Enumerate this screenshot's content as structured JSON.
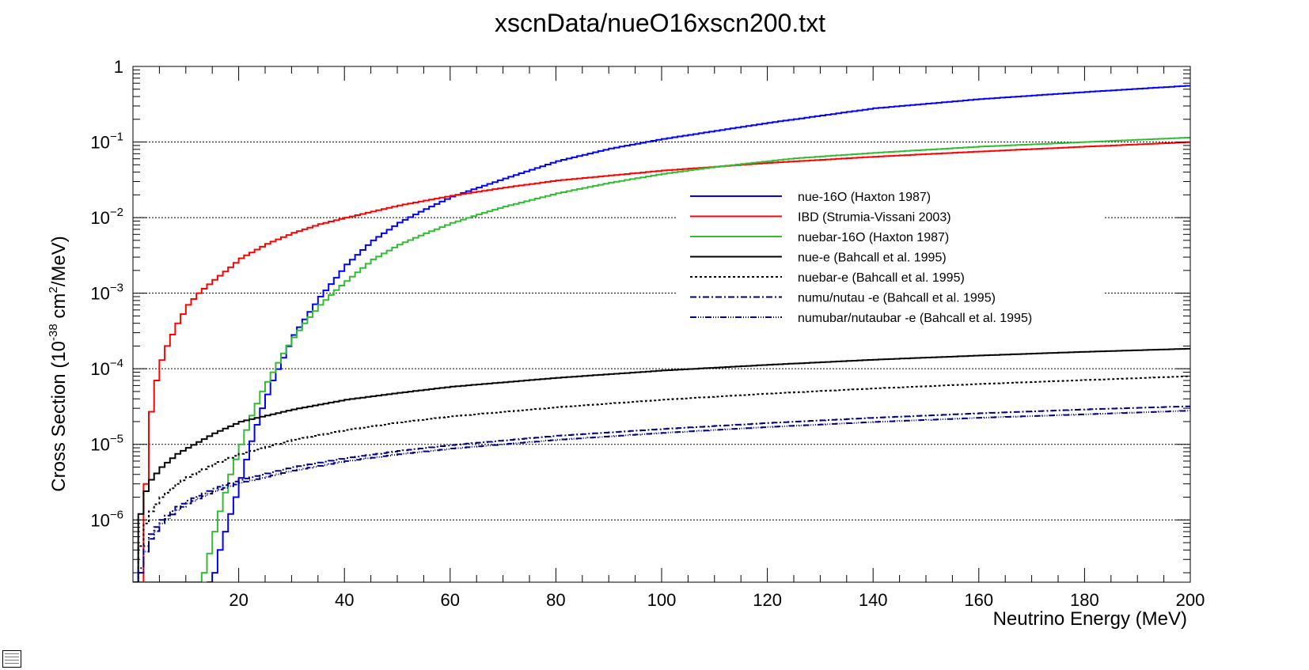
{
  "chart_data": {
    "type": "line",
    "title": "xscnData/nueO16xscn200.txt",
    "xlabel": "Neutrino Energy (MeV)",
    "ylabel_main": "Cross Section (10",
    "ylabel_exp": "-38",
    "ylabel_rest": " cm",
    "ylabel_sq": "2",
    "ylabel_unit": "/MeV)",
    "xlim": [
      0,
      200
    ],
    "ylim": [
      1.5e-07,
      1.0
    ],
    "yscale": "log",
    "grid": true,
    "legend_position": "center-right",
    "x_ticks": [
      20,
      40,
      60,
      80,
      100,
      120,
      140,
      160,
      180,
      200
    ],
    "x_tick_labels": [
      "20",
      "40",
      "60",
      "80",
      "100",
      "120",
      "140",
      "160",
      "180",
      "200"
    ],
    "y_ticks": [
      {
        "value": 1,
        "base": "1",
        "exp": ""
      },
      {
        "value": 0.1,
        "base": "10",
        "exp": "−1"
      },
      {
        "value": 0.01,
        "base": "10",
        "exp": "−2"
      },
      {
        "value": 0.001,
        "base": "10",
        "exp": "−3"
      },
      {
        "value": 0.0001,
        "base": "10",
        "exp": "−4"
      },
      {
        "value": 1e-05,
        "base": "10",
        "exp": "−5"
      },
      {
        "value": 1e-06,
        "base": "10",
        "exp": "−6"
      }
    ],
    "series": [
      {
        "name": "nue-16O (Haxton 1987)",
        "color": "#0000ff",
        "dash": "",
        "x": [
          14,
          15,
          16,
          17,
          18,
          19,
          20,
          22,
          24,
          26,
          28,
          30,
          32,
          35,
          38,
          40,
          45,
          50,
          55,
          60,
          65,
          70,
          75,
          80,
          90,
          100,
          120,
          140,
          160,
          180,
          200
        ],
        "y": [
          1.5e-07,
          2e-07,
          4e-07,
          7e-07,
          1.2e-06,
          2e-06,
          3.6e-06,
          1.1e-05,
          3e-05,
          7e-05,
          0.00014,
          0.00028,
          0.00045,
          0.0009,
          0.0016,
          0.0024,
          0.005,
          0.0086,
          0.013,
          0.019,
          0.025,
          0.033,
          0.043,
          0.056,
          0.082,
          0.11,
          0.18,
          0.28,
          0.37,
          0.46,
          0.56
        ]
      },
      {
        "name": "IBD (Strumia-Vissani 2003)",
        "color": "#ff0000",
        "dash": "",
        "x": [
          1.8,
          2,
          3,
          4,
          5,
          6,
          8,
          10,
          12,
          15,
          18,
          20,
          25,
          30,
          35,
          40,
          50,
          60,
          70,
          80,
          100,
          120,
          140,
          160,
          180,
          200
        ],
        "y": [
          1.5e-07,
          3e-06,
          2.7e-05,
          7e-05,
          0.00013,
          0.0002,
          0.0004,
          0.0007,
          0.001,
          0.0015,
          0.0022,
          0.0029,
          0.0045,
          0.0063,
          0.0082,
          0.01,
          0.0145,
          0.0195,
          0.025,
          0.031,
          0.042,
          0.053,
          0.064,
          0.075,
          0.087,
          0.1
        ]
      },
      {
        "name": "nuebar-16O (Haxton 1987)",
        "color": "#33bb33",
        "dash": "",
        "x": [
          0,
          12,
          13,
          14,
          15,
          16,
          17,
          18,
          20,
          22,
          24,
          26,
          28,
          30,
          32,
          35,
          38,
          40,
          45,
          50,
          55,
          60,
          65,
          70,
          80,
          90,
          100,
          110,
          125,
          140,
          160,
          180,
          200
        ],
        "y": [
          1.5e-07,
          1.5e-07,
          2e-07,
          3.6e-07,
          7e-07,
          1.3e-06,
          2.3e-06,
          4e-06,
          1e-05,
          2.4e-05,
          5e-05,
          9e-05,
          0.00016,
          0.00026,
          0.0004,
          0.0007,
          0.0011,
          0.00145,
          0.0028,
          0.0044,
          0.0062,
          0.0085,
          0.011,
          0.014,
          0.021,
          0.029,
          0.038,
          0.047,
          0.061,
          0.072,
          0.087,
          0.1,
          0.115
        ]
      },
      {
        "name": "nue-e (Bahcall et al. 1995)",
        "color": "#000000",
        "dash": "",
        "x": [
          0,
          1,
          2,
          3,
          5,
          8,
          10,
          15,
          20,
          30,
          40,
          50,
          60,
          80,
          100,
          120,
          140,
          160,
          180,
          200
        ],
        "y": [
          1.5e-07,
          1.2e-06,
          2.4e-06,
          3.4e-06,
          5e-06,
          7.5e-06,
          9e-06,
          1.4e-05,
          2e-05,
          2.9e-05,
          3.9e-05,
          4.8e-05,
          5.8e-05,
          7.6e-05,
          9.5e-05,
          0.000113,
          0.000132,
          0.00015,
          0.000168,
          0.000185
        ]
      },
      {
        "name": "nuebar-e (Bahcall et al. 1995)",
        "color": "#000000",
        "dash": "3,3",
        "x": [
          0,
          1,
          2,
          3,
          5,
          8,
          10,
          15,
          20,
          30,
          40,
          50,
          60,
          80,
          100,
          120,
          140,
          160,
          180,
          200
        ],
        "y": [
          1.5e-07,
          4.5e-07,
          9e-07,
          1.3e-06,
          2e-06,
          3e-06,
          3.7e-06,
          5.5e-06,
          7.5e-06,
          1.15e-05,
          1.55e-05,
          1.95e-05,
          2.35e-05,
          3.1e-05,
          3.9e-05,
          4.7e-05,
          5.5e-05,
          6.3e-05,
          7.1e-05,
          8e-05
        ]
      },
      {
        "name": "numu/nutau -e (Bahcall et al. 1995)",
        "color": "#000080",
        "dash": "8,3,2,3",
        "x": [
          0,
          1,
          2,
          3,
          5,
          8,
          10,
          15,
          20,
          30,
          40,
          50,
          60,
          80,
          100,
          120,
          140,
          160,
          180,
          200
        ],
        "y": [
          1.5e-07,
          2.3e-07,
          4.5e-07,
          6.5e-07,
          1e-06,
          1.5e-06,
          1.8e-06,
          2.6e-06,
          3.4e-06,
          5e-06,
          6.6e-06,
          8.2e-06,
          9.8e-06,
          1.3e-05,
          1.6e-05,
          1.92e-05,
          2.25e-05,
          2.58e-05,
          2.9e-05,
          3.2e-05
        ]
      },
      {
        "name": "numubar/nutaubar -e (Bahcall et al. 1995)",
        "color": "#000080",
        "dash": "8,2,1,2,1,2,1,2",
        "x": [
          0,
          1,
          2,
          3,
          5,
          8,
          10,
          15,
          20,
          30,
          40,
          50,
          60,
          80,
          100,
          120,
          140,
          160,
          180,
          200
        ],
        "y": [
          1.5e-07,
          2e-07,
          3.8e-07,
          5.6e-07,
          9e-07,
          1.35e-06,
          1.65e-06,
          2.4e-06,
          3.1e-06,
          4.5e-06,
          6e-06,
          7.4e-06,
          8.8e-06,
          1.15e-05,
          1.42e-05,
          1.7e-05,
          1.98e-05,
          2.25e-05,
          2.5e-05,
          2.8e-05
        ]
      }
    ]
  }
}
